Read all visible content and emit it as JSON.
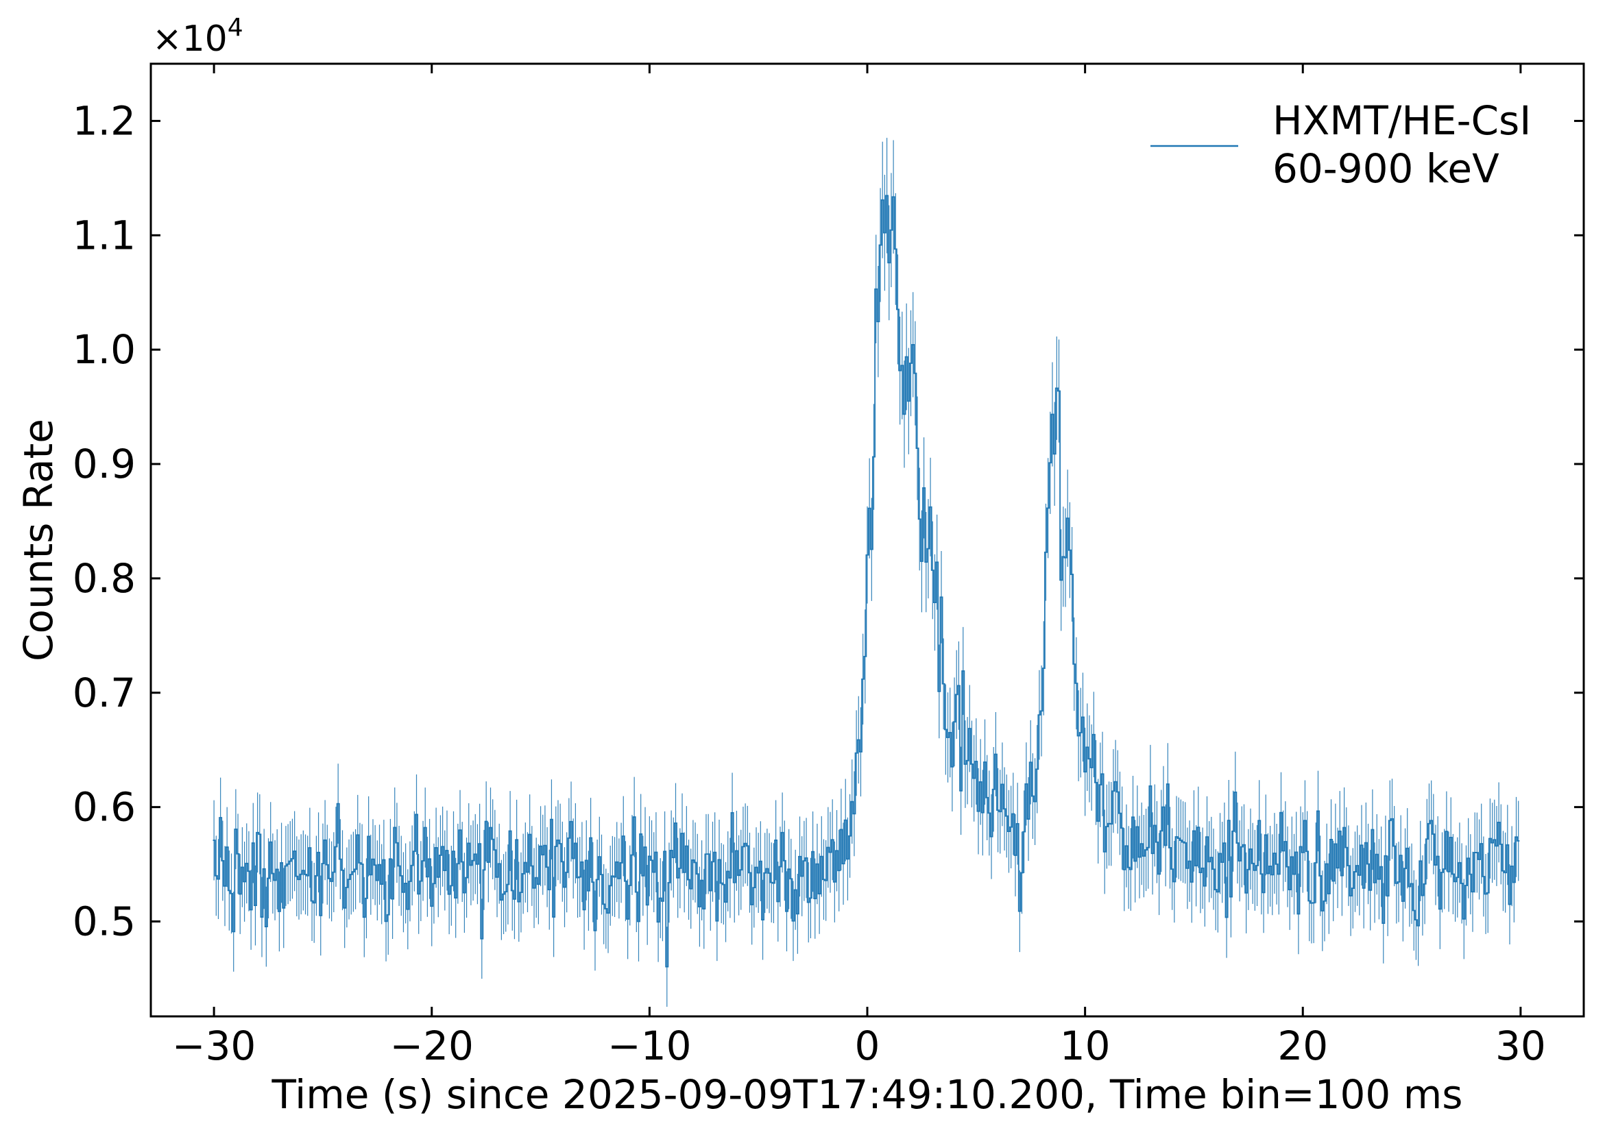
{
  "chart_data": {
    "type": "line",
    "xlabel": "Time (s) since 2025-09-09T17:49:10.200, Time bin=100 ms",
    "ylabel": "Counts Rate",
    "y_multiplier": "×10",
    "y_multiplier_exp": "4",
    "xlim": [
      -32.9,
      32.9
    ],
    "ylim": [
      0.417,
      1.25
    ],
    "x_ticks": [
      -30,
      -20,
      -10,
      0,
      10,
      20,
      30
    ],
    "x_tick_labels": [
      "−30",
      "−20",
      "−10",
      "0",
      "10",
      "20",
      "30"
    ],
    "y_ticks": [
      0.5,
      0.6,
      0.7,
      0.8,
      0.9,
      1.0,
      1.1,
      1.2
    ],
    "y_tick_labels": [
      "0.5",
      "0.6",
      "0.7",
      "0.8",
      "0.9",
      "1.0",
      "1.1",
      "1.2"
    ],
    "tick_direction": "in",
    "grid": false,
    "legend_position": "top-right",
    "series": [
      {
        "name": "HXMT/HE-CsI",
        "name_line2": "60-900 keV",
        "color": "#1f77b4",
        "bin_width": 0.1,
        "x_start": -30.0,
        "x_end": 29.9,
        "baseline": 0.543,
        "noise": 0.025,
        "error": 0.035,
        "profile_points": [
          [
            -30.0,
            0.543
          ],
          [
            -3.0,
            0.543
          ],
          [
            -1.5,
            0.555
          ],
          [
            -1.0,
            0.575
          ],
          [
            -0.5,
            0.62
          ],
          [
            -0.2,
            0.7
          ],
          [
            0.0,
            0.8
          ],
          [
            0.2,
            0.9
          ],
          [
            0.5,
            1.05
          ],
          [
            0.7,
            1.15
          ],
          [
            1.0,
            1.12
          ],
          [
            1.2,
            1.09
          ],
          [
            1.5,
            0.99
          ],
          [
            2.0,
            0.95
          ],
          [
            2.5,
            0.88
          ],
          [
            3.0,
            0.81
          ],
          [
            3.5,
            0.7
          ],
          [
            4.0,
            0.67
          ],
          [
            5.0,
            0.63
          ],
          [
            6.0,
            0.6
          ],
          [
            6.5,
            0.58
          ],
          [
            7.0,
            0.565
          ],
          [
            7.5,
            0.6
          ],
          [
            8.0,
            0.7
          ],
          [
            8.3,
            0.85
          ],
          [
            8.5,
            0.92
          ],
          [
            8.8,
            0.9
          ],
          [
            9.2,
            0.8
          ],
          [
            9.8,
            0.68
          ],
          [
            10.5,
            0.61
          ],
          [
            12.0,
            0.58
          ],
          [
            15.0,
            0.56
          ],
          [
            20.0,
            0.55
          ],
          [
            29.9,
            0.543
          ]
        ]
      }
    ]
  }
}
